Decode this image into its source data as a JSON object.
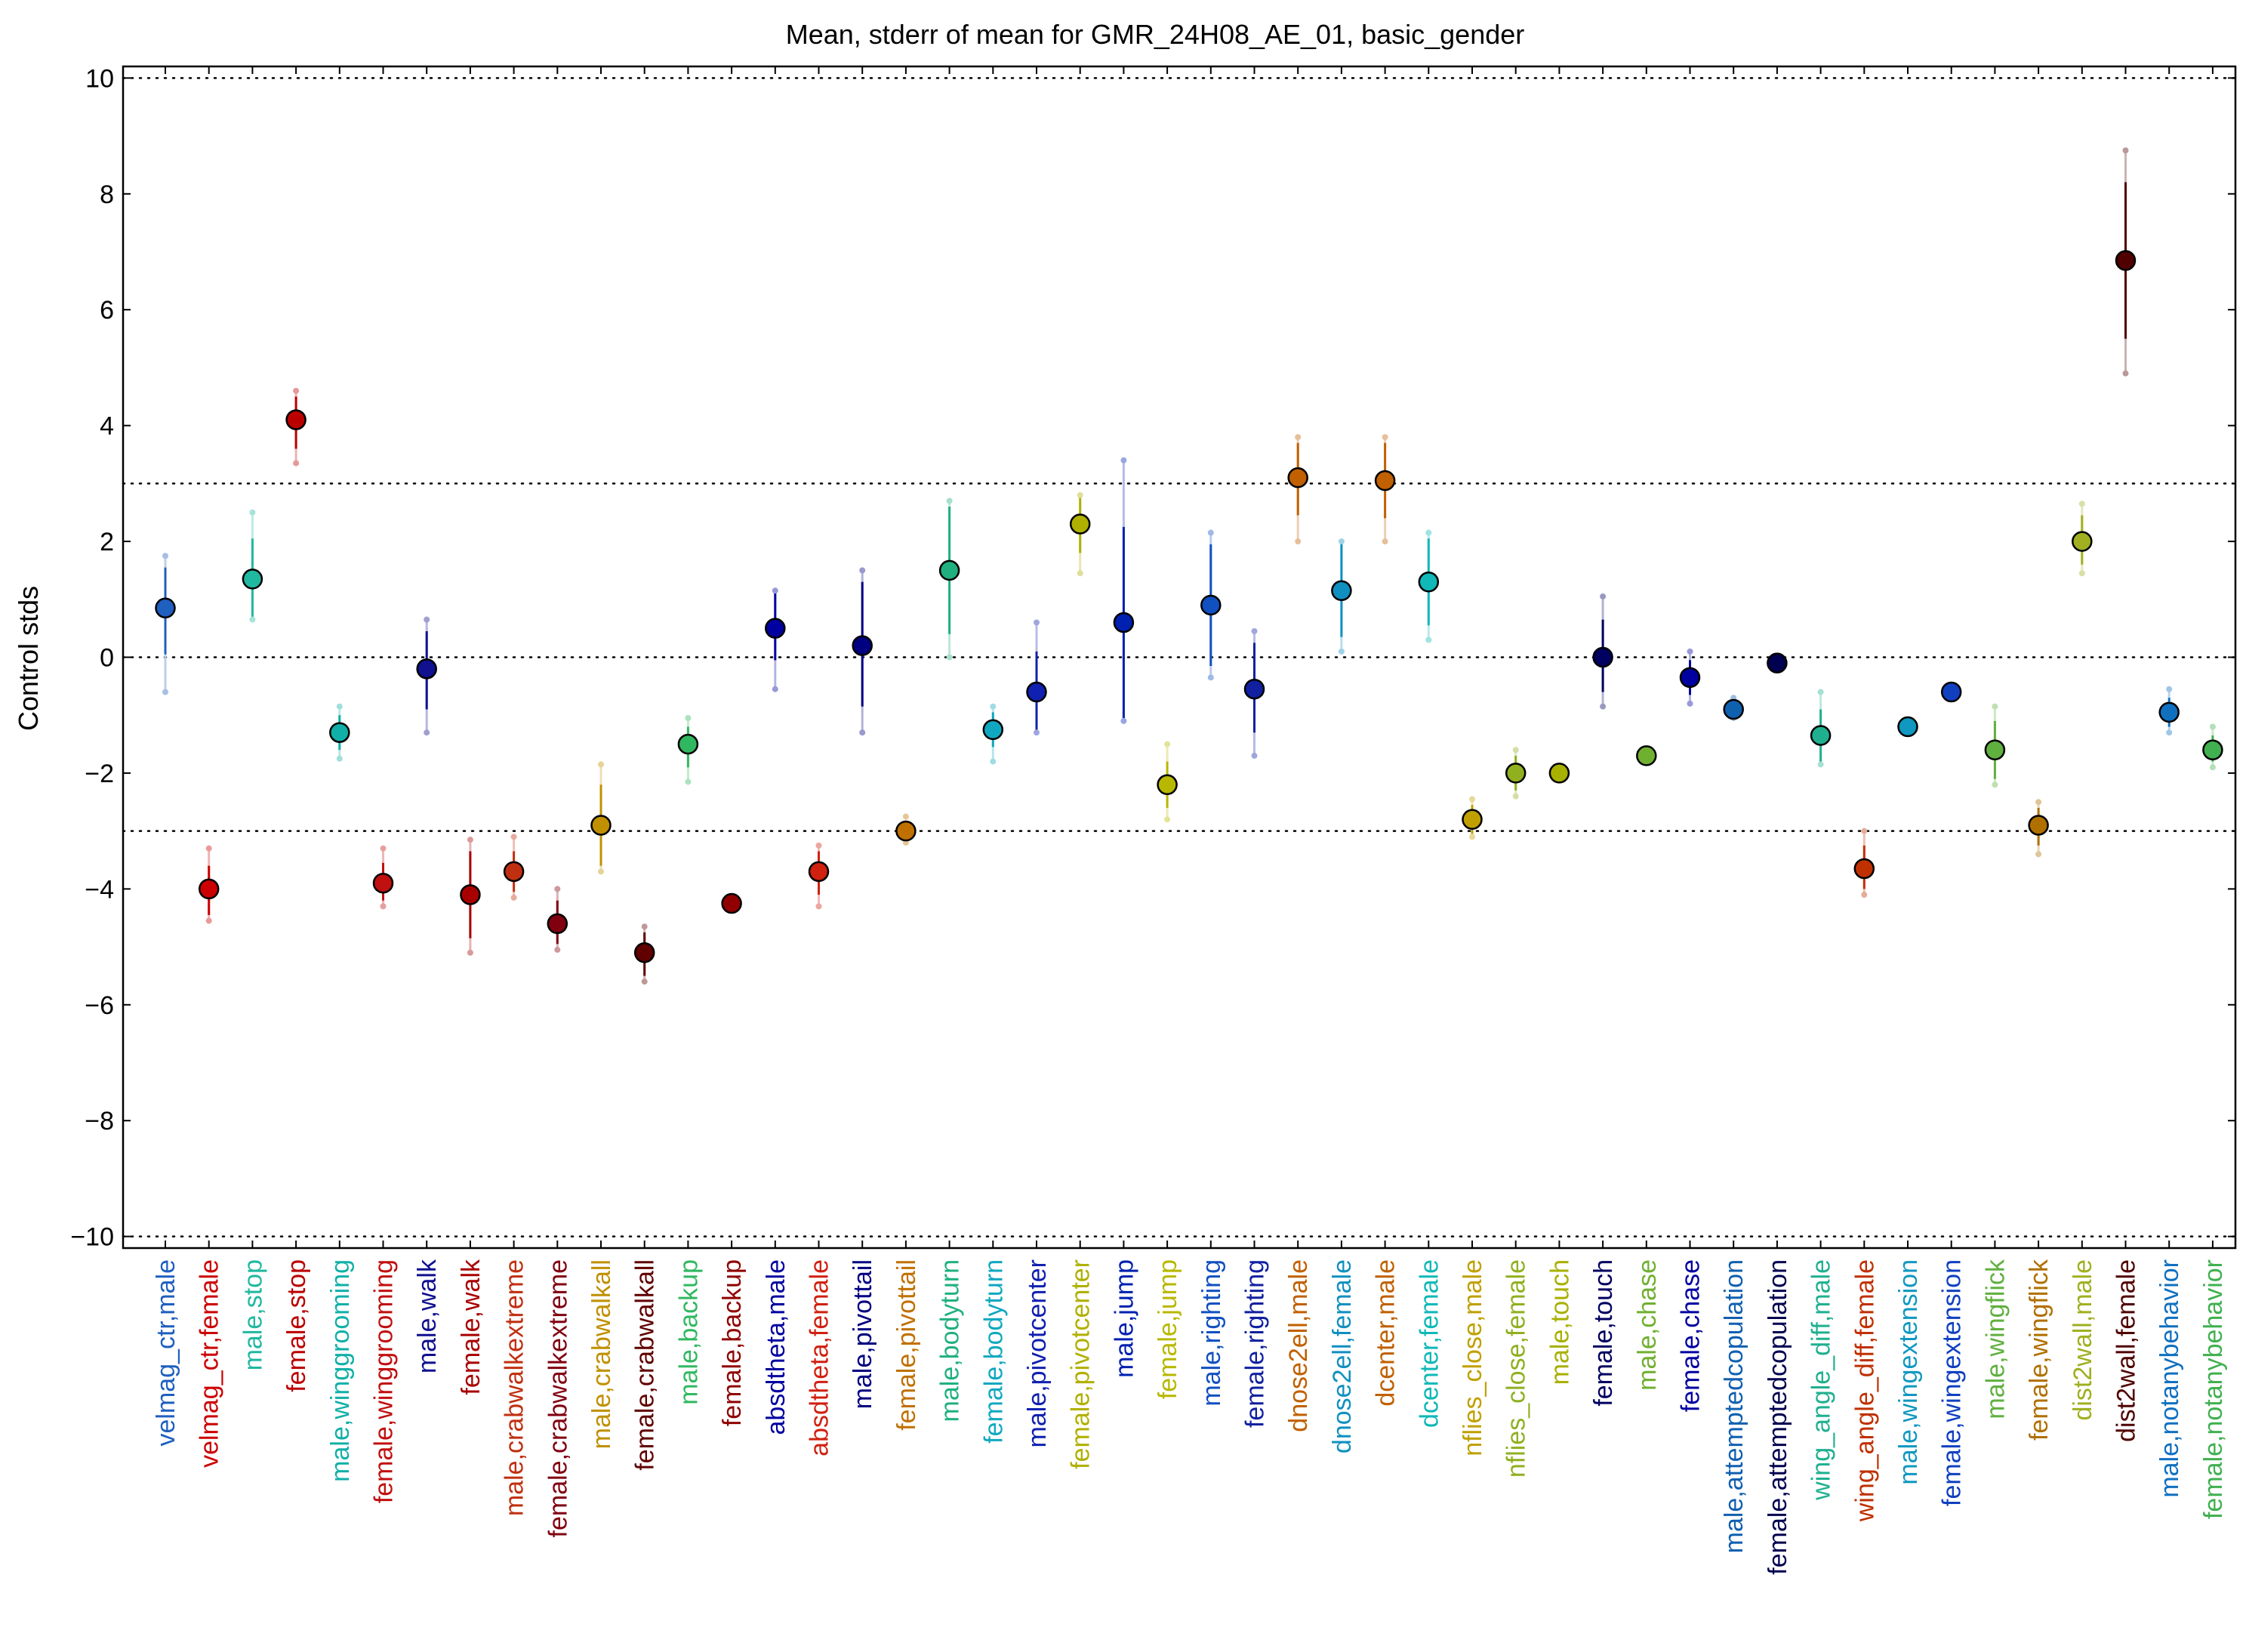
{
  "chart_data": {
    "type": "scatter",
    "title": "Mean, stderr of mean for GMR_24H08_AE_01, basic_gender",
    "xlabel": "",
    "ylabel": "Control stds",
    "ylim": [
      -10.2,
      10.2
    ],
    "yticks": [
      10,
      8,
      6,
      4,
      2,
      0,
      -2,
      -4,
      -6,
      -8,
      -10
    ],
    "ytick_labels": [
      "10",
      "8",
      "6",
      "4",
      "2",
      "0",
      "−2",
      "−4",
      "−6",
      "−8",
      "−10"
    ],
    "reference_lines": [
      10,
      3,
      0,
      -3,
      -10
    ],
    "grid": false,
    "legend": "none",
    "points": [
      {
        "label": "velmag_ctr,male",
        "mean": 0.85,
        "err_low": 0.05,
        "err_high": 1.55,
        "range_low": -0.6,
        "range_high": 1.75,
        "color": "#1f5fbf"
      },
      {
        "label": "velmag_ctr,female",
        "mean": -4.0,
        "err_low": -4.45,
        "err_high": -3.6,
        "range_low": -4.55,
        "range_high": -3.3,
        "color": "#cc0000"
      },
      {
        "label": "male,stop",
        "mean": 1.35,
        "err_low": 0.7,
        "err_high": 2.05,
        "range_low": 0.65,
        "range_high": 2.5,
        "color": "#20b8a0"
      },
      {
        "label": "female,stop",
        "mean": 4.1,
        "err_low": 3.6,
        "err_high": 4.5,
        "range_low": 3.35,
        "range_high": 4.6,
        "color": "#bb0000"
      },
      {
        "label": "male,winggrooming",
        "mean": -1.3,
        "err_low": -1.6,
        "err_high": -1.0,
        "range_low": -1.75,
        "range_high": -0.85,
        "color": "#10b0a8"
      },
      {
        "label": "female,winggrooming",
        "mean": -3.9,
        "err_low": -4.2,
        "err_high": -3.55,
        "range_low": -4.3,
        "range_high": -3.3,
        "color": "#c01010"
      },
      {
        "label": "male,walk",
        "mean": -0.2,
        "err_low": -0.9,
        "err_high": 0.45,
        "range_low": -1.3,
        "range_high": 0.65,
        "color": "#101090"
      },
      {
        "label": "female,walk",
        "mean": -4.1,
        "err_low": -4.85,
        "err_high": -3.35,
        "range_low": -5.1,
        "range_high": -3.15,
        "color": "#a80000"
      },
      {
        "label": "male,crabwalkextreme",
        "mean": -3.7,
        "err_low": -4.05,
        "err_high": -3.35,
        "range_low": -4.15,
        "range_high": -3.1,
        "color": "#c03010"
      },
      {
        "label": "female,crabwalkextreme",
        "mean": -4.6,
        "err_low": -4.95,
        "err_high": -4.2,
        "range_low": -5.05,
        "range_high": -4.0,
        "color": "#800010"
      },
      {
        "label": "male,crabwalkall",
        "mean": -2.9,
        "err_low": -3.6,
        "err_high": -2.2,
        "range_low": -3.7,
        "range_high": -1.85,
        "color": "#c09000"
      },
      {
        "label": "female,crabwalkall",
        "mean": -5.1,
        "err_low": -5.5,
        "err_high": -4.75,
        "range_low": -5.6,
        "range_high": -4.65,
        "color": "#600000"
      },
      {
        "label": "male,backup",
        "mean": -1.5,
        "err_low": -1.9,
        "err_high": -1.2,
        "range_low": -2.15,
        "range_high": -1.05,
        "color": "#30b860"
      },
      {
        "label": "female,backup",
        "mean": -4.25,
        "err_low": -4.3,
        "err_high": -4.2,
        "range_low": -4.3,
        "range_high": -4.2,
        "color": "#900000"
      },
      {
        "label": "absdtheta,male",
        "mean": 0.5,
        "err_low": -0.05,
        "err_high": 1.1,
        "range_low": -0.55,
        "range_high": 1.15,
        "color": "#0000a0"
      },
      {
        "label": "absdtheta,female",
        "mean": -3.7,
        "err_low": -4.1,
        "err_high": -3.35,
        "range_low": -4.3,
        "range_high": -3.25,
        "color": "#d02010"
      },
      {
        "label": "male,pivottail",
        "mean": 0.2,
        "err_low": -0.85,
        "err_high": 1.3,
        "range_low": -1.3,
        "range_high": 1.5,
        "color": "#000080"
      },
      {
        "label": "female,pivottail",
        "mean": -3.0,
        "err_low": -3.1,
        "err_high": -2.85,
        "range_low": -3.2,
        "range_high": -2.75,
        "color": "#c07000"
      },
      {
        "label": "male,bodyturn",
        "mean": 1.5,
        "err_low": 0.4,
        "err_high": 2.6,
        "range_low": 0.0,
        "range_high": 2.7,
        "color": "#20b080"
      },
      {
        "label": "female,bodyturn",
        "mean": -1.25,
        "err_low": -1.55,
        "err_high": -0.95,
        "range_low": -1.8,
        "range_high": -0.85,
        "color": "#10a8c0"
      },
      {
        "label": "male,pivotcenter",
        "mean": -0.6,
        "err_low": -1.25,
        "err_high": 0.1,
        "range_low": -1.3,
        "range_high": 0.6,
        "color": "#1020b0"
      },
      {
        "label": "female,pivotcenter",
        "mean": 2.3,
        "err_low": 1.8,
        "err_high": 2.75,
        "range_low": 1.45,
        "range_high": 2.8,
        "color": "#b0b000"
      },
      {
        "label": "male,jump",
        "mean": 0.6,
        "err_low": -1.05,
        "err_high": 2.25,
        "range_low": -1.1,
        "range_high": 3.4,
        "color": "#0020b0"
      },
      {
        "label": "female,jump",
        "mean": -2.2,
        "err_low": -2.6,
        "err_high": -1.8,
        "range_low": -2.8,
        "range_high": -1.5,
        "color": "#b8b800"
      },
      {
        "label": "male,righting",
        "mean": 0.9,
        "err_low": -0.15,
        "err_high": 1.95,
        "range_low": -0.35,
        "range_high": 2.15,
        "color": "#1050c0"
      },
      {
        "label": "female,righting",
        "mean": -0.55,
        "err_low": -1.3,
        "err_high": 0.25,
        "range_low": -1.7,
        "range_high": 0.45,
        "color": "#1020a0"
      },
      {
        "label": "dnose2ell,male",
        "mean": 3.1,
        "err_low": 2.45,
        "err_high": 3.7,
        "range_low": 2.0,
        "range_high": 3.8,
        "color": "#c06000"
      },
      {
        "label": "dnose2ell,female",
        "mean": 1.15,
        "err_low": 0.35,
        "err_high": 1.95,
        "range_low": 0.1,
        "range_high": 2.0,
        "color": "#1090c0"
      },
      {
        "label": "dcenter,male",
        "mean": 3.05,
        "err_low": 2.4,
        "err_high": 3.7,
        "range_low": 2.0,
        "range_high": 3.8,
        "color": "#c06000"
      },
      {
        "label": "dcenter,female",
        "mean": 1.3,
        "err_low": 0.55,
        "err_high": 2.05,
        "range_low": 0.3,
        "range_high": 2.15,
        "color": "#10b8b8"
      },
      {
        "label": "nflies_close,male",
        "mean": -2.8,
        "err_low": -3.05,
        "err_high": -2.55,
        "range_low": -3.1,
        "range_high": -2.45,
        "color": "#c0a000"
      },
      {
        "label": "nflies_close,female",
        "mean": -2.0,
        "err_low": -2.3,
        "err_high": -1.7,
        "range_low": -2.4,
        "range_high": -1.6,
        "color": "#90b020"
      },
      {
        "label": "male,touch",
        "mean": -2.0,
        "err_low": -2.05,
        "err_high": -1.95,
        "range_low": -2.05,
        "range_high": -1.95,
        "color": "#a8b000"
      },
      {
        "label": "female,touch",
        "mean": 0.0,
        "err_low": -0.6,
        "err_high": 0.65,
        "range_low": -0.85,
        "range_high": 1.05,
        "color": "#000060"
      },
      {
        "label": "male,chase",
        "mean": -1.7,
        "err_low": -1.75,
        "err_high": -1.65,
        "range_low": -1.75,
        "range_high": -1.65,
        "color": "#70b030"
      },
      {
        "label": "female,chase",
        "mean": -0.35,
        "err_low": -0.65,
        "err_high": -0.05,
        "range_low": -0.8,
        "range_high": 0.1,
        "color": "#0000a0"
      },
      {
        "label": "male,attemptedcopulation",
        "mean": -0.9,
        "err_low": -1.0,
        "err_high": -0.8,
        "range_low": -1.05,
        "range_high": -0.7,
        "color": "#1060b0"
      },
      {
        "label": "female,attemptedcopulation",
        "mean": -0.1,
        "err_low": -0.15,
        "err_high": -0.05,
        "range_low": -0.15,
        "range_high": -0.05,
        "color": "#000050"
      },
      {
        "label": "wing_angle_diff,male",
        "mean": -1.35,
        "err_low": -1.8,
        "err_high": -0.9,
        "range_low": -1.85,
        "range_high": -0.6,
        "color": "#20b090"
      },
      {
        "label": "wing_angle_diff,female",
        "mean": -3.65,
        "err_low": -4.0,
        "err_high": -3.25,
        "range_low": -4.1,
        "range_high": -3.0,
        "color": "#c03000"
      },
      {
        "label": "male,wingextension",
        "mean": -1.2,
        "err_low": -1.25,
        "err_high": -1.15,
        "range_low": -1.25,
        "range_high": -1.15,
        "color": "#1098c0"
      },
      {
        "label": "female,wingextension",
        "mean": -0.6,
        "err_low": -0.65,
        "err_high": -0.55,
        "range_low": -0.65,
        "range_high": -0.55,
        "color": "#1040c0"
      },
      {
        "label": "male,wingflick",
        "mean": -1.6,
        "err_low": -2.1,
        "err_high": -1.1,
        "range_low": -2.2,
        "range_high": -0.85,
        "color": "#60b040"
      },
      {
        "label": "female,wingflick",
        "mean": -2.9,
        "err_low": -3.25,
        "err_high": -2.6,
        "range_low": -3.4,
        "range_high": -2.5,
        "color": "#b07000"
      },
      {
        "label": "dist2wall,male",
        "mean": 2.0,
        "err_low": 1.6,
        "err_high": 2.45,
        "range_low": 1.45,
        "range_high": 2.65,
        "color": "#a0b020"
      },
      {
        "label": "dist2wall,female",
        "mean": 6.85,
        "err_low": 5.5,
        "err_high": 8.2,
        "range_low": 4.9,
        "range_high": 8.75,
        "color": "#500000"
      },
      {
        "label": "male,notanybehavior",
        "mean": -0.95,
        "err_low": -1.2,
        "err_high": -0.7,
        "range_low": -1.3,
        "range_high": -0.55,
        "color": "#1070c0"
      },
      {
        "label": "female,notanybehavior",
        "mean": -1.6,
        "err_low": -1.8,
        "err_high": -1.35,
        "range_low": -1.9,
        "range_high": -1.2,
        "color": "#40b050"
      }
    ]
  }
}
